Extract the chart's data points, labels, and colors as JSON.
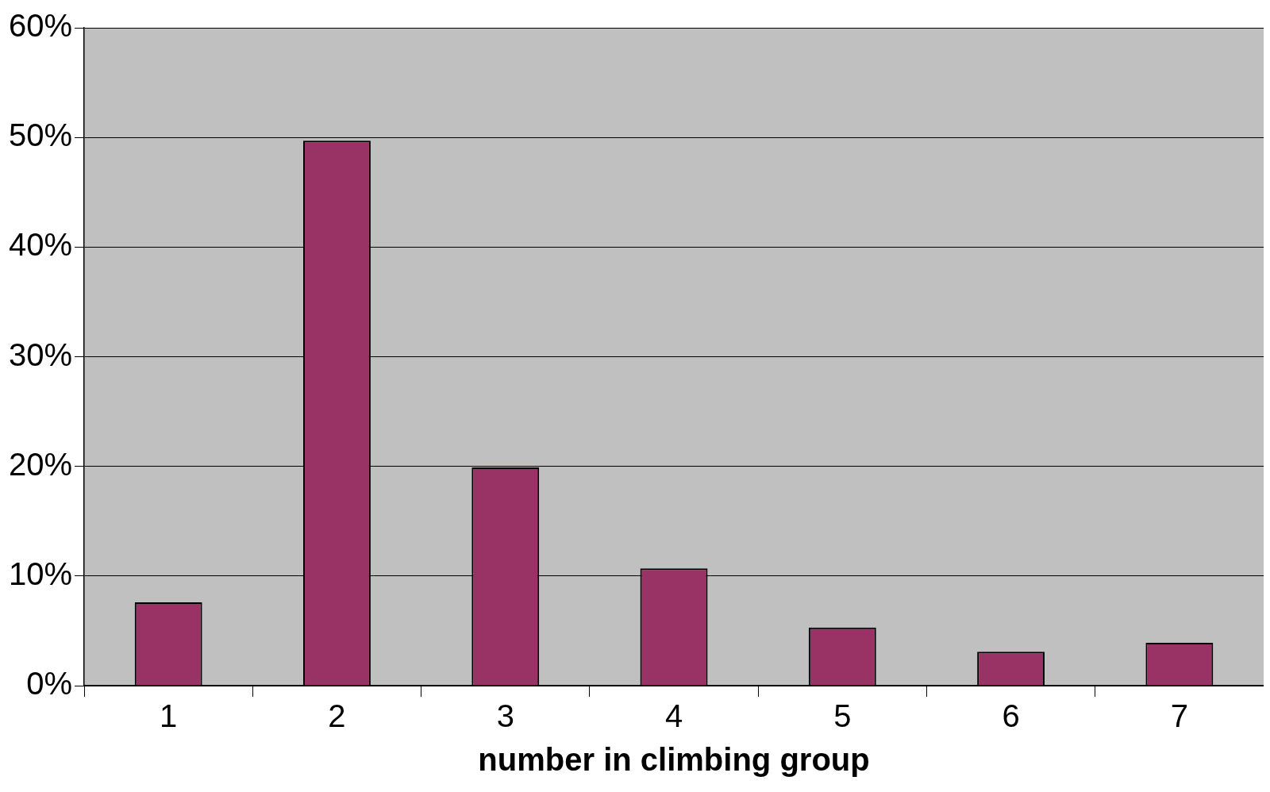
{
  "chart_data": {
    "type": "bar",
    "xlabel": "number in climbing group",
    "categories": [
      "1",
      "2",
      "3",
      "4",
      "5",
      "6",
      "7"
    ],
    "values": [
      7.6,
      49.7,
      19.9,
      10.7,
      5.3,
      3.1,
      3.9
    ],
    "color": "#993366",
    "ylim": [
      0,
      60
    ],
    "yticks": [
      {
        "value": 0,
        "label": "0%"
      },
      {
        "value": 10,
        "label": "10%"
      },
      {
        "value": 20,
        "label": "20%"
      },
      {
        "value": 30,
        "label": "30%"
      },
      {
        "value": 40,
        "label": "40%"
      },
      {
        "value": 50,
        "label": "50%"
      },
      {
        "value": 60,
        "label": "60%"
      }
    ],
    "grid": "y",
    "legend": false
  }
}
